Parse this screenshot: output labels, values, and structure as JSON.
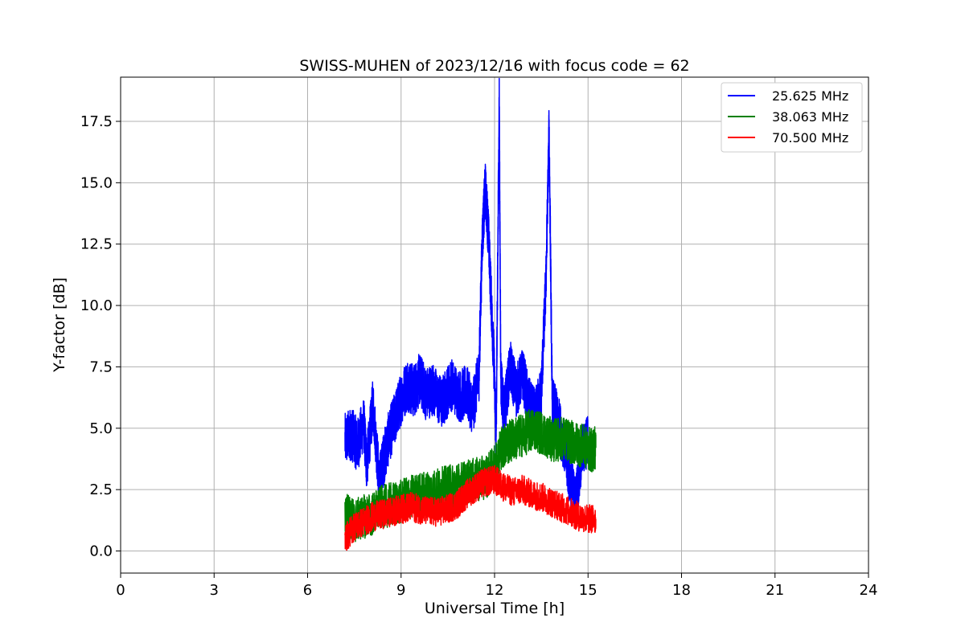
{
  "chart_data": {
    "type": "line",
    "title": "SWISS-MUHEN of 2023/12/16 with focus code = 62",
    "xlabel": "Universal Time [h]",
    "ylabel": "Y-factor [dB]",
    "xlim": [
      0,
      24
    ],
    "ylim": [
      -0.9,
      19.3
    ],
    "xticks": [
      0,
      3,
      6,
      9,
      12,
      15,
      18,
      21,
      24
    ],
    "xtick_labels": [
      "0",
      "3",
      "6",
      "9",
      "12",
      "15",
      "18",
      "21",
      "24"
    ],
    "yticks": [
      0,
      2.5,
      5,
      7.5,
      10,
      12.5,
      15,
      17.5
    ],
    "ytick_labels": [
      "0.0",
      "2.5",
      "5.0",
      "7.5",
      "10.0",
      "12.5",
      "15.0",
      "17.5"
    ],
    "grid": true,
    "legend_position": "top-right",
    "series": [
      {
        "name": "25.625 MHz",
        "color": "#0000ff",
        "x": [
          7.2,
          7.4,
          7.6,
          7.8,
          7.9,
          8.1,
          8.3,
          8.45,
          8.6,
          8.8,
          9.0,
          9.2,
          9.4,
          9.6,
          9.8,
          10.0,
          10.3,
          10.6,
          10.9,
          11.1,
          11.3,
          11.5,
          11.6,
          11.7,
          11.8,
          11.9,
          12.0,
          12.05,
          12.15,
          12.2,
          12.3,
          12.5,
          12.7,
          12.9,
          13.1,
          13.3,
          13.5,
          13.65,
          13.75,
          13.85,
          14.0,
          14.2,
          14.4,
          14.6,
          14.8,
          15.0
        ],
        "y": [
          4.5,
          4.8,
          4.3,
          5.2,
          3.5,
          6.0,
          2.8,
          3.8,
          4.6,
          5.4,
          6.2,
          6.8,
          6.5,
          7.0,
          6.4,
          6.6,
          6.0,
          6.8,
          6.3,
          6.5,
          5.8,
          7.2,
          12.5,
          14.8,
          13.0,
          10.0,
          7.0,
          4.5,
          18.4,
          7.0,
          5.5,
          7.5,
          6.5,
          7.2,
          6.0,
          5.5,
          6.5,
          11.0,
          17.2,
          6.0,
          5.5,
          4.5,
          3.0,
          2.0,
          4.0,
          4.5
        ]
      },
      {
        "name": "38.063 MHz",
        "color": "#008000",
        "x": [
          7.2,
          7.5,
          7.8,
          8.1,
          8.4,
          8.7,
          9.0,
          9.3,
          9.6,
          9.9,
          10.2,
          10.5,
          10.8,
          11.1,
          11.4,
          11.7,
          12.0,
          12.2,
          12.4,
          12.7,
          13.0,
          13.3,
          13.6,
          13.9,
          14.2,
          14.5,
          14.8,
          15.1,
          15.25
        ],
        "y": [
          1.6,
          1.2,
          1.4,
          1.5,
          1.8,
          1.9,
          2.0,
          2.2,
          2.3,
          2.4,
          2.5,
          2.6,
          2.7,
          2.8,
          2.9,
          3.0,
          3.4,
          4.2,
          4.4,
          4.6,
          4.8,
          5.0,
          4.7,
          4.5,
          4.6,
          4.4,
          4.3,
          4.1,
          4.2
        ]
      },
      {
        "name": "70.500 MHz",
        "color": "#ff0000",
        "x": [
          7.2,
          7.5,
          7.8,
          8.1,
          8.4,
          8.7,
          9.0,
          9.3,
          9.6,
          9.9,
          10.2,
          10.5,
          10.8,
          11.1,
          11.4,
          11.7,
          12.0,
          12.3,
          12.6,
          12.9,
          13.2,
          13.5,
          13.8,
          14.1,
          14.4,
          14.7,
          15.0,
          15.25
        ],
        "y": [
          0.5,
          1.0,
          1.2,
          1.4,
          1.5,
          1.6,
          1.7,
          1.8,
          1.7,
          1.6,
          1.6,
          1.7,
          1.9,
          2.3,
          2.6,
          2.8,
          2.9,
          2.6,
          2.4,
          2.5,
          2.3,
          2.2,
          2.0,
          1.8,
          1.6,
          1.4,
          1.3,
          1.3
        ]
      }
    ]
  }
}
